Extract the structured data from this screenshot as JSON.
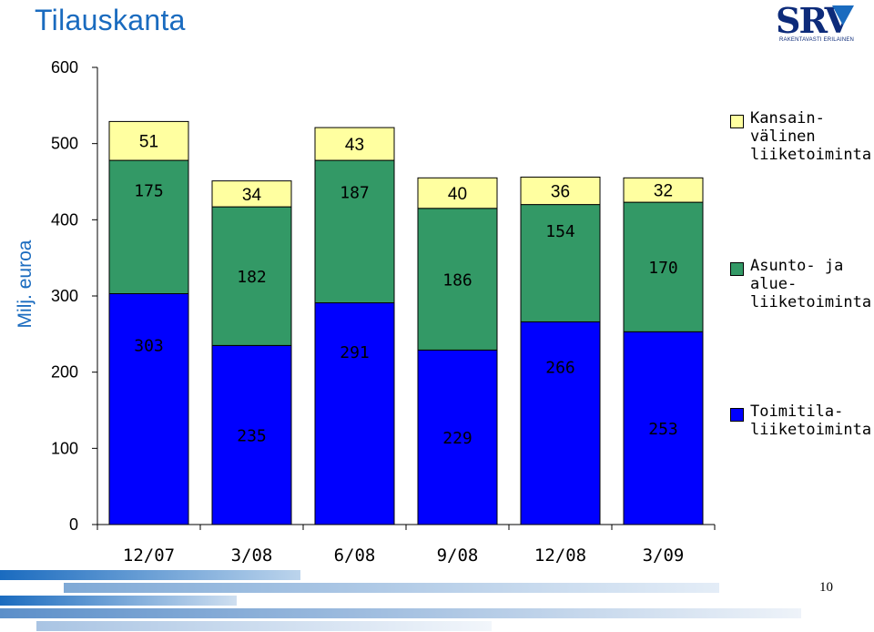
{
  "title": "Tilauskanta",
  "logo": {
    "text": "SRV",
    "tagline": "RAKENTAVASTI ERILAINEN"
  },
  "page_number": "10",
  "colors": {
    "title": "#1a6bbf",
    "international": "#ffffa0",
    "housing": "#339966",
    "business": "#0000ff"
  },
  "chart_data": {
    "type": "bar",
    "stacked": true,
    "title": "Tilauskanta",
    "ylabel": "Milj. euroa",
    "xlabel": "",
    "ylim": [
      0,
      600
    ],
    "yticks": [
      0,
      100,
      200,
      300,
      400,
      500,
      600
    ],
    "grid": false,
    "legend_position": "right",
    "categories": [
      "12/07",
      "3/08",
      "6/08",
      "9/08",
      "12/08",
      "3/09"
    ],
    "series": [
      {
        "name": "Toimitila-\nliiketoiminta",
        "color": "#0000ff",
        "values": [
          303,
          235,
          291,
          229,
          266,
          253
        ]
      },
      {
        "name": "Asunto- ja\nalue-\nliiketoiminta",
        "color": "#339966",
        "values": [
          175,
          182,
          187,
          186,
          154,
          170
        ]
      },
      {
        "name": "Kansain-\nvälinen\nliiketoiminta",
        "color": "#ffffa0",
        "values": [
          51,
          34,
          43,
          40,
          36,
          32
        ]
      }
    ]
  }
}
